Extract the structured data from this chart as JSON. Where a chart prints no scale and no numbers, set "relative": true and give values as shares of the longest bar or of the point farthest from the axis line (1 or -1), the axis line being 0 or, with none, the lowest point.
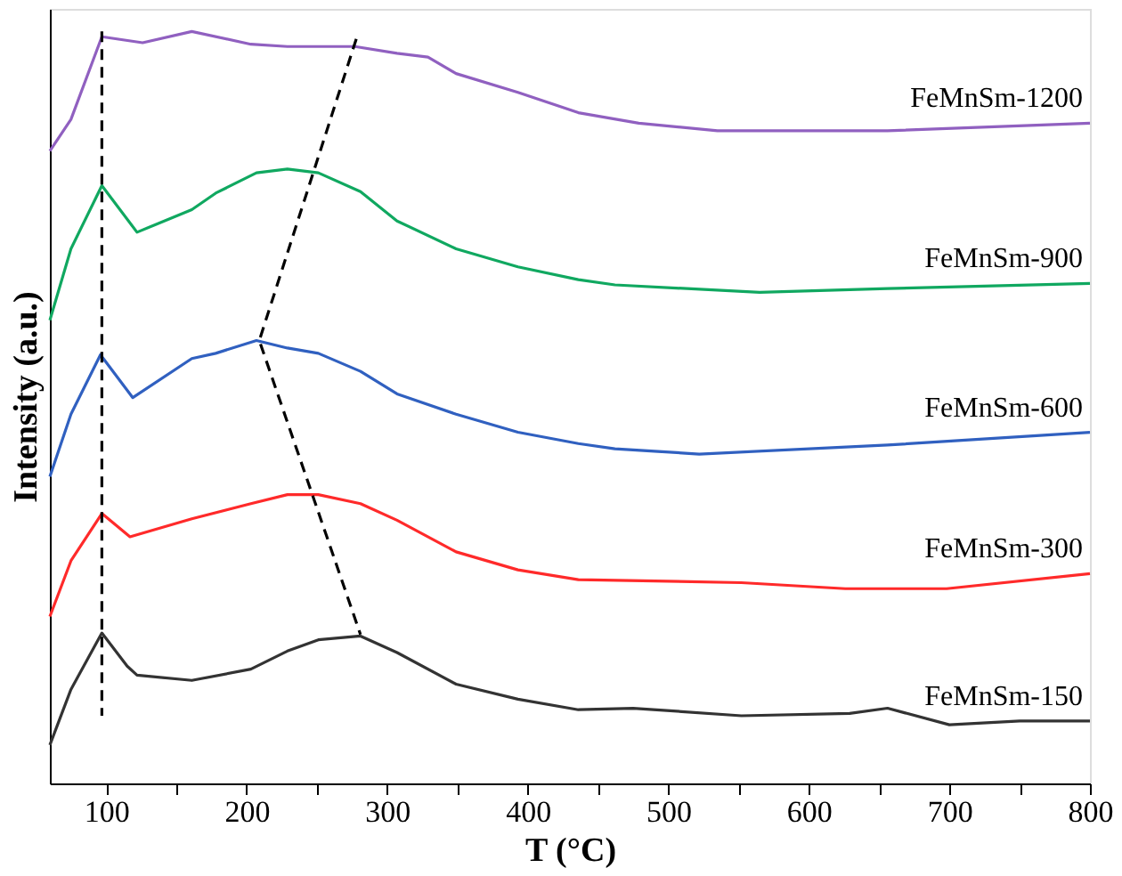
{
  "chart_data": {
    "type": "line",
    "relative": true,
    "xlabel": "T (°C)",
    "ylabel": "Intensity (a.u.)",
    "grid": false,
    "marker": "none",
    "line_style": "solid",
    "xlim": [
      60,
      800
    ],
    "xticks": [
      100,
      {
        "value": 150,
        "label": null
      },
      200,
      {
        "value": 250,
        "label": null
      },
      300,
      {
        "value": 350,
        "label": null
      },
      400,
      {
        "value": 450,
        "label": null
      },
      500,
      {
        "value": 550,
        "label": null
      },
      600,
      {
        "value": 650,
        "label": null
      },
      700,
      {
        "value": 750,
        "label": null
      },
      800
    ],
    "series": [
      {
        "name": "FeMnSm-150",
        "color": "#333333",
        "x": [
          60,
          75,
          97,
          115,
          122,
          161,
          203,
          229,
          251,
          281,
          307,
          349,
          393,
          436,
          475,
          552,
          629,
          656,
          700,
          750,
          800
        ],
        "values": [
          0.051,
          0.125,
          0.2,
          0.156,
          0.144,
          0.137,
          0.152,
          0.176,
          0.191,
          0.196,
          0.174,
          0.132,
          0.112,
          0.098,
          0.1,
          0.09,
          0.093,
          0.1,
          0.078,
          0.083,
          0.083
        ]
      },
      {
        "name": "FeMnSm-300",
        "color": "#ff2a2a",
        "x": [
          60,
          75,
          97,
          117,
          161,
          203,
          229,
          251,
          281,
          307,
          349,
          393,
          436,
          552,
          626,
          698,
          800
        ],
        "values": [
          0.222,
          0.296,
          0.359,
          0.328,
          0.352,
          0.372,
          0.384,
          0.384,
          0.372,
          0.35,
          0.308,
          0.284,
          0.271,
          0.267,
          0.259,
          0.259,
          0.279
        ]
      },
      {
        "name": "FeMnSm-600",
        "color": "#3060c0",
        "x": [
          60,
          75,
          96,
          119,
          161,
          178,
          207,
          229,
          251,
          281,
          307,
          349,
          393,
          436,
          462,
          522,
          656,
          800
        ],
        "values": [
          0.408,
          0.491,
          0.57,
          0.513,
          0.565,
          0.572,
          0.589,
          0.579,
          0.572,
          0.548,
          0.518,
          0.491,
          0.467,
          0.452,
          0.445,
          0.438,
          0.45,
          0.467
        ]
      },
      {
        "name": "FeMnSm-900",
        "color": "#10a860",
        "x": [
          60,
          75,
          97,
          122,
          161,
          178,
          207,
          229,
          251,
          281,
          307,
          349,
          393,
          436,
          462,
          565,
          656,
          800
        ],
        "values": [
          0.616,
          0.711,
          0.795,
          0.733,
          0.763,
          0.785,
          0.812,
          0.817,
          0.812,
          0.787,
          0.748,
          0.711,
          0.687,
          0.67,
          0.663,
          0.653,
          0.658,
          0.665
        ]
      },
      {
        "name": "FeMnSm-1200",
        "color": "#9060c0",
        "x": [
          60,
          75,
          97,
          126,
          161,
          203,
          229,
          277,
          307,
          329,
          349,
          393,
          436,
          479,
          535,
          656,
          800
        ],
        "values": [
          0.841,
          0.883,
          0.993,
          0.985,
          1.0,
          0.983,
          0.98,
          0.98,
          0.971,
          0.966,
          0.944,
          0.919,
          0.892,
          0.878,
          0.868,
          0.868,
          0.878
        ]
      },
      {
        "color": "#000000",
        "line_style": "dashed",
        "x": [
          97,
          97
        ],
        "values": [
          1.0,
          0.09
        ]
      },
      {
        "color": "#000000",
        "line_style": "dashed",
        "x": [
          278,
          209,
          281
        ],
        "values": [
          0.99,
          0.589,
          0.198
        ]
      }
    ]
  }
}
